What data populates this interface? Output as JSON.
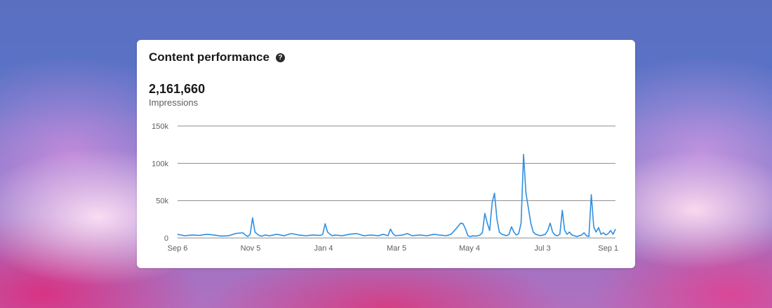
{
  "card": {
    "title": "Content performance",
    "help_icon": "question-circle-icon",
    "metric_value": "2,161,660",
    "metric_label": "Impressions"
  },
  "colors": {
    "line": "#2f8fe0",
    "grid": "#8c8c8c",
    "card": "#ffffff"
  },
  "chart_data": {
    "type": "line",
    "title": "",
    "xlabel": "",
    "ylabel": "",
    "ylim": [
      0,
      150000
    ],
    "y_ticks": [
      0,
      50000,
      100000,
      150000
    ],
    "y_tick_labels": [
      "0",
      "50k",
      "100k",
      "150k"
    ],
    "x_ticks": [
      "Sep 6",
      "Nov 5",
      "Jan 4",
      "Mar 5",
      "May 4",
      "Jul 3",
      "Sep 1"
    ],
    "grid": true,
    "series": [
      {
        "x_days": [
          0,
          6,
          12,
          18,
          24,
          30,
          36,
          42,
          48,
          54,
          56,
          58,
          60,
          62,
          64,
          66,
          68,
          70,
          72,
          76,
          82,
          88,
          94,
          100,
          106,
          112,
          118,
          120,
          122,
          124,
          126,
          128,
          130,
          136,
          142,
          148,
          154,
          160,
          166,
          170,
          172,
          174,
          176,
          178,
          180,
          186,
          190,
          194,
          200,
          206,
          212,
          216,
          222,
          226,
          230,
          234,
          236,
          238,
          240,
          242,
          244,
          246,
          248,
          250,
          252,
          254,
          256,
          258,
          260,
          262,
          264,
          266,
          268,
          270,
          272,
          274,
          276,
          278,
          280,
          282,
          284,
          286,
          288,
          290,
          292,
          294,
          296,
          298,
          300,
          302,
          304,
          306,
          308,
          310,
          312,
          314,
          316,
          318,
          320,
          322,
          324,
          326,
          328,
          330,
          332,
          334,
          336,
          338,
          340,
          342,
          344,
          346,
          348,
          350,
          352,
          354,
          356,
          358,
          360,
          362
        ],
        "values": [
          5000,
          3000,
          4000,
          3500,
          5000,
          4000,
          2500,
          3000,
          6000,
          7000,
          4000,
          2000,
          5000,
          27000,
          8000,
          5000,
          3000,
          2500,
          4000,
          3000,
          5000,
          3000,
          6000,
          4000,
          3000,
          4000,
          3500,
          5000,
          19000,
          8000,
          5000,
          3000,
          4000,
          3000,
          5000,
          6000,
          3000,
          4000,
          3000,
          5000,
          4000,
          3000,
          12000,
          6000,
          3000,
          4000,
          6000,
          3000,
          4000,
          3000,
          5000,
          4000,
          3000,
          5000,
          12000,
          20000,
          19000,
          12000,
          3000,
          2000,
          3000,
          2500,
          3000,
          4000,
          7000,
          33000,
          20000,
          10000,
          47000,
          60000,
          25000,
          8000,
          5000,
          4000,
          3000,
          5000,
          15000,
          8000,
          4000,
          6000,
          20000,
          112000,
          60000,
          40000,
          20000,
          8000,
          5000,
          4000,
          3000,
          4000,
          5000,
          10000,
          20000,
          8000,
          4000,
          3000,
          5000,
          37000,
          10000,
          5000,
          8000,
          4000,
          3000,
          2000,
          3000,
          4000,
          7000,
          3000,
          2000,
          58000,
          15000,
          8000,
          14000,
          5000,
          7000,
          4000,
          6000,
          10000,
          5000,
          12000
        ]
      }
    ]
  }
}
